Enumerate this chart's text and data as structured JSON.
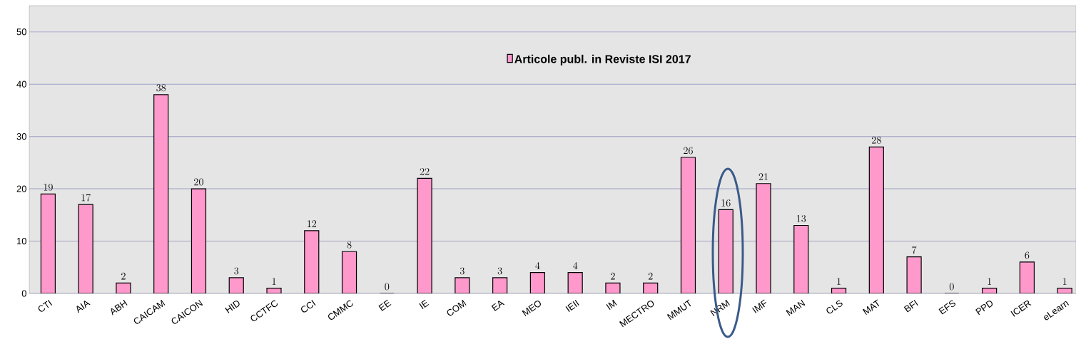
{
  "chart_data": {
    "type": "bar",
    "categories": [
      "CTI",
      "AIA",
      "ABH",
      "CAICAM",
      "CAICON",
      "HID",
      "CCTFC",
      "CCI",
      "CMMC",
      "EE",
      "IE",
      "COM",
      "EA",
      "MEO",
      "IEII",
      "IM",
      "MECTRO",
      "MMUT",
      "NRM",
      "IMF",
      "MAN",
      "CLS",
      "MAT",
      "BFI",
      "EFS",
      "PPD",
      "ICER",
      "eLearn"
    ],
    "series": [
      {
        "name": "Articole publ. in Reviste ISI 2017",
        "color": "#ff99cc",
        "values": [
          19,
          17,
          2,
          38,
          20,
          3,
          1,
          12,
          8,
          0,
          22,
          3,
          3,
          4,
          4,
          2,
          2,
          26,
          16,
          21,
          13,
          1,
          28,
          7,
          0,
          1,
          6,
          1
        ]
      }
    ],
    "ylim": [
      0,
      55
    ],
    "yticks": [
      0,
      10,
      20,
      30,
      40,
      50
    ],
    "grid": "y",
    "legend": "top",
    "data_labels": true
  }
}
